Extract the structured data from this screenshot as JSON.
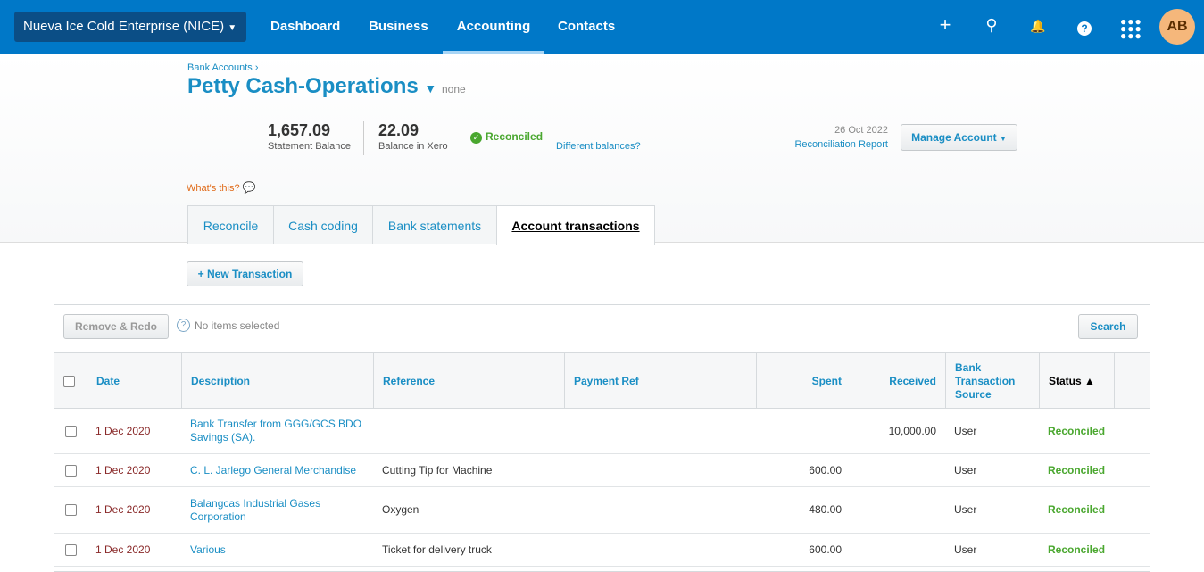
{
  "topbar": {
    "org": "Nueva Ice Cold Enterprise (NICE)",
    "nav": [
      "Dashboard",
      "Business",
      "Accounting",
      "Contacts"
    ],
    "active": "Accounting",
    "avatar": "AB"
  },
  "header": {
    "breadcrumb": "Bank Accounts ›",
    "title": "Petty Cash-Operations",
    "account_number": "none",
    "statement_balance": "1,657.09",
    "statement_balance_label": "Statement Balance",
    "xero_balance": "22.09",
    "xero_balance_label": "Balance in Xero",
    "status": "Reconciled",
    "different_balances": "Different balances?",
    "date": "26 Oct 2022",
    "reconciliation_report": "Reconciliation Report",
    "manage_account": "Manage Account",
    "whats_this": "What's this?"
  },
  "tabs": [
    "Reconcile",
    "Cash coding",
    "Bank statements",
    "Account transactions"
  ],
  "new_transaction": "+ New Transaction",
  "toolbar": {
    "remove_redo": "Remove & Redo",
    "no_items": "No items selected",
    "search": "Search"
  },
  "table": {
    "columns": [
      "Date",
      "Description",
      "Reference",
      "Payment Ref",
      "Spent",
      "Received",
      "Bank Transaction Source",
      "Status ▲"
    ],
    "rows": [
      {
        "date": "1 Dec 2020",
        "description": "Bank Transfer from GGG/GCS BDO Savings (SA).",
        "reference": "",
        "payment_ref": "",
        "spent": "",
        "received": "10,000.00",
        "source": "User",
        "status": "Reconciled"
      },
      {
        "date": "1 Dec 2020",
        "description": "C. L. Jarlego General Merchandise",
        "reference": "Cutting Tip for Machine",
        "payment_ref": "",
        "spent": "600.00",
        "received": "",
        "source": "User",
        "status": "Reconciled"
      },
      {
        "date": "1 Dec 2020",
        "description": "Balangcas Industrial Gases Corporation",
        "reference": "Oxygen",
        "payment_ref": "",
        "spent": "480.00",
        "received": "",
        "source": "User",
        "status": "Reconciled"
      },
      {
        "date": "1 Dec 2020",
        "description": "Various",
        "reference": "Ticket for delivery truck",
        "payment_ref": "",
        "spent": "600.00",
        "received": "",
        "source": "User",
        "status": "Reconciled"
      }
    ]
  }
}
